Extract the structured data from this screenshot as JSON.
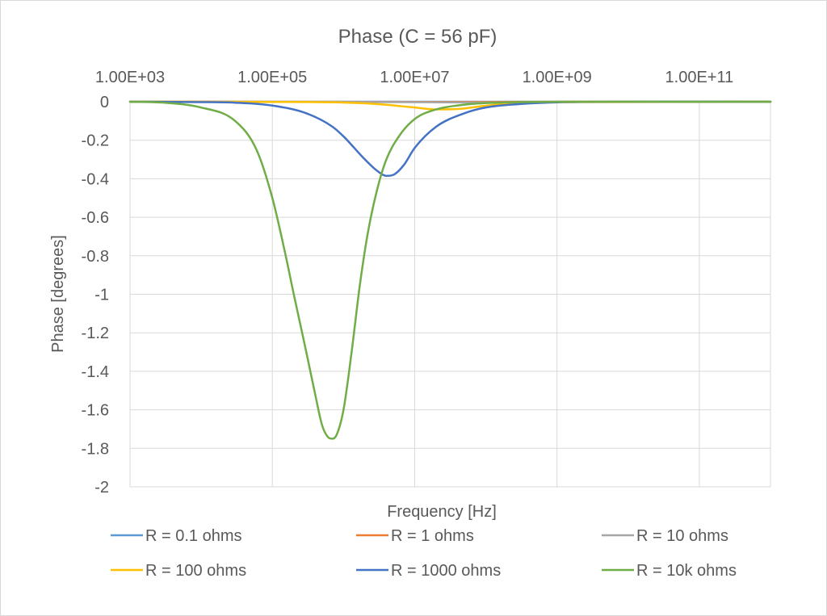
{
  "chart_data": {
    "type": "line",
    "title": "Phase (C = 56 pF)",
    "xlabel": "Frequency [Hz]",
    "ylabel": "Phase [degrees]",
    "x_scale": "log",
    "x_position": "top",
    "xlim": [
      1000,
      1000000000000
    ],
    "ylim": [
      -2,
      0
    ],
    "x_ticks": [
      1000,
      100000,
      10000000,
      1000000000,
      100000000000
    ],
    "x_tick_labels": [
      "1.00E+03",
      "1.00E+05",
      "1.00E+07",
      "1.00E+09",
      "1.00E+11"
    ],
    "x_gridlines": [
      1000,
      100000,
      10000000,
      1000000000,
      100000000000
    ],
    "y_ticks": [
      0,
      -0.2,
      -0.4,
      -0.6,
      -0.8,
      -1,
      -1.2,
      -1.4,
      -1.6,
      -1.8,
      -2
    ],
    "y_tick_labels": [
      "0",
      "-0.2",
      "-0.4",
      "-0.6",
      "-0.8",
      "-1",
      "-1.2",
      "-1.4",
      "-1.6",
      "-1.8",
      "-2"
    ],
    "grid": true,
    "legend_position": "bottom",
    "series": [
      {
        "name": "R = 0.1 ohms",
        "color": "#5b9bd5",
        "x": [
          1000,
          1000000000000
        ],
        "y": [
          0,
          0
        ]
      },
      {
        "name": "R = 1 ohms",
        "color": "#ed7d31",
        "x": [
          1000,
          100000000,
          1000000000,
          1000000000000
        ],
        "y": [
          0,
          -0.001,
          0,
          0
        ]
      },
      {
        "name": "R = 10 ohms",
        "color": "#a5a5a5",
        "x": [
          1000,
          10000000,
          100000000,
          1000000000,
          1000000000000
        ],
        "y": [
          0,
          -0.002,
          -0.004,
          -0.001,
          0
        ]
      },
      {
        "name": "R = 100 ohms",
        "color": "#ffc000",
        "x": [
          1000,
          100000,
          1000000,
          3000000,
          10000000,
          20000000,
          40000000,
          80000000,
          200000000,
          1000000000,
          1000000000000
        ],
        "y": [
          0,
          -0.001,
          -0.004,
          -0.012,
          -0.03,
          -0.04,
          -0.038,
          -0.025,
          -0.01,
          -0.002,
          0
        ]
      },
      {
        "name": "R = 1000 ohms",
        "color": "#4472c4",
        "x": [
          1000,
          10000,
          30000,
          100000,
          300000,
          700000,
          1000000,
          2000000,
          3000000,
          4000000,
          5000000,
          7000000,
          10000000,
          20000000,
          50000000,
          100000000,
          300000000,
          1000000000,
          10000000000,
          1000000000000
        ],
        "y": [
          0,
          -0.002,
          -0.005,
          -0.02,
          -0.06,
          -0.13,
          -0.18,
          -0.3,
          -0.36,
          -0.385,
          -0.38,
          -0.33,
          -0.24,
          -0.13,
          -0.06,
          -0.03,
          -0.012,
          -0.003,
          0,
          0
        ]
      },
      {
        "name": "R = 10k ohms",
        "color": "#70ad47",
        "x": [
          1000,
          3000,
          10000,
          30000,
          60000,
          100000,
          150000,
          200000,
          300000,
          400000,
          500000,
          600000,
          700000,
          800000,
          1000000,
          1300000,
          1700000,
          2200000,
          3000000,
          4000000,
          6000000,
          10000000,
          20000000,
          50000000,
          100000000,
          300000000,
          1000000000,
          10000000000,
          1000000000000
        ],
        "y": [
          0,
          -0.005,
          -0.03,
          -0.1,
          -0.25,
          -0.5,
          -0.78,
          -1.0,
          -1.3,
          -1.52,
          -1.68,
          -1.74,
          -1.75,
          -1.73,
          -1.6,
          -1.3,
          -0.95,
          -0.68,
          -0.45,
          -0.3,
          -0.18,
          -0.09,
          -0.04,
          -0.015,
          -0.007,
          -0.002,
          -0.0005,
          0,
          0
        ]
      }
    ]
  }
}
